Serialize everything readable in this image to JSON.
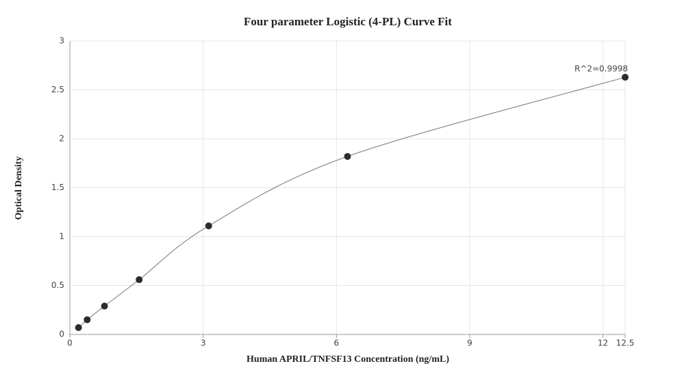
{
  "chart_data": {
    "type": "scatter",
    "title": "Four parameter Logistic (4-PL) Curve Fit",
    "x_label": "Human APRIL/TNFSF13 Concentration (ng/mL)",
    "y_label": "Optical Density",
    "annotation": "R^2=0.9998",
    "x": [
      0.195,
      0.39,
      0.78,
      1.56,
      3.125,
      6.25,
      12.5
    ],
    "values": [
      0.07,
      0.15,
      0.29,
      0.56,
      1.11,
      1.82,
      2.63
    ],
    "color": "#2b2b2b",
    "line_color": "#888888",
    "xlim": [
      0,
      12.5
    ],
    "xticks": [
      0,
      3,
      6,
      9,
      12,
      12.5
    ],
    "ylim": [
      0,
      3
    ],
    "yticks": [
      0,
      0.5,
      1,
      1.5,
      2,
      2.5,
      3
    ],
    "grid": true
  }
}
